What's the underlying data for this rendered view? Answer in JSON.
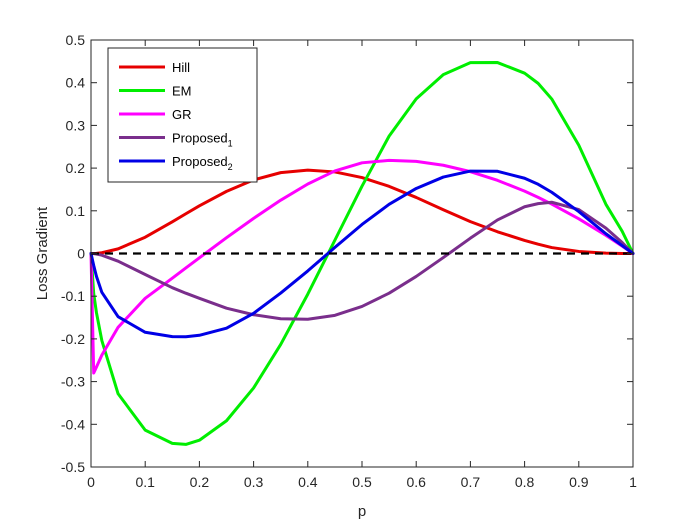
{
  "chart_data": {
    "type": "line",
    "xlabel": "p",
    "ylabel": "Loss Gradient",
    "xlim": [
      0,
      1
    ],
    "ylim": [
      -0.5,
      0.5
    ],
    "xticks": [
      "0",
      "0.1",
      "0.2",
      "0.3",
      "0.4",
      "0.5",
      "0.6",
      "0.7",
      "0.8",
      "0.9",
      "1"
    ],
    "yticks": [
      "-0.5",
      "-0.4",
      "-0.3",
      "-0.2",
      "-0.1",
      "0",
      "0.1",
      "0.2",
      "0.3",
      "0.4",
      "0.5"
    ],
    "grid": false,
    "box": true,
    "legend_position": "top-left",
    "x": [
      0,
      0.005,
      0.01,
      0.02,
      0.05,
      0.1,
      0.15,
      0.175,
      0.2,
      0.25,
      0.3,
      0.35,
      0.4,
      0.45,
      0.5,
      0.55,
      0.6,
      0.65,
      0.7,
      0.75,
      0.8,
      0.825,
      0.85,
      0.9,
      0.95,
      0.98,
      1
    ],
    "series": [
      {
        "name": "Hill",
        "color": "#e60000",
        "values": [
          0,
          0.0001,
          0.0004,
          0.0017,
          0.0108,
          0.0382,
          0.0742,
          0.0931,
          0.1116,
          0.1455,
          0.1723,
          0.1894,
          0.1953,
          0.191,
          0.1778,
          0.1573,
          0.1313,
          0.1025,
          0.0746,
          0.0509,
          0.0306,
          0.0217,
          0.0139,
          0.0048,
          0.0008,
          0.0001,
          0
        ]
      },
      {
        "name": "EM",
        "color": "#00ee00",
        "values": [
          0,
          -0.0936,
          -0.1382,
          -0.2039,
          -0.3285,
          -0.4136,
          -0.4446,
          -0.4471,
          -0.4373,
          -0.3917,
          -0.3149,
          -0.213,
          -0.0951,
          0.0313,
          0.1577,
          0.2749,
          0.3621,
          0.419,
          0.4469,
          0.4472,
          0.4223,
          0.3984,
          0.362,
          0.2535,
          0.1152,
          0.0521,
          0
        ]
      },
      {
        "name": "GR",
        "color": "#ff00ff",
        "values": [
          0,
          -0.28,
          -0.266,
          -0.2381,
          -0.1728,
          -0.105,
          -0.0578,
          -0.0339,
          -0.0101,
          0.037,
          0.0823,
          0.1249,
          0.1628,
          0.1933,
          0.2124,
          0.2181,
          0.2157,
          0.2067,
          0.1917,
          0.1713,
          0.146,
          0.1314,
          0.1158,
          0.0812,
          0.0424,
          0.0172,
          0
        ]
      },
      {
        "name": "Proposed_1",
        "color": "#7a2e8c",
        "values": [
          0,
          -0.0004,
          -0.0012,
          -0.004,
          -0.018,
          -0.0491,
          -0.0801,
          -0.093,
          -0.105,
          -0.128,
          -0.1434,
          -0.1529,
          -0.154,
          -0.1448,
          -0.124,
          -0.0929,
          -0.0537,
          -0.0095,
          0.0359,
          0.0786,
          0.1095,
          0.1168,
          0.12,
          0.1029,
          0.0595,
          0.0257,
          0
        ]
      },
      {
        "name": "Proposed_2",
        "color": "#0000e6",
        "values": [
          0,
          -0.028,
          -0.0533,
          -0.0909,
          -0.148,
          -0.1845,
          -0.1946,
          -0.195,
          -0.1915,
          -0.175,
          -0.1401,
          -0.0926,
          -0.0408,
          0.0143,
          0.068,
          0.1152,
          0.1523,
          0.179,
          0.193,
          0.1925,
          0.1762,
          0.1621,
          0.1434,
          0.0982,
          0.0463,
          0.0185,
          0
        ]
      },
      {
        "name": "",
        "color": "#000000",
        "dashed": true,
        "values": [
          0,
          0,
          0,
          0,
          0,
          0,
          0,
          0,
          0,
          0,
          0,
          0,
          0,
          0,
          0,
          0,
          0,
          0,
          0,
          0,
          0,
          0,
          0,
          0,
          0,
          0,
          0
        ]
      }
    ],
    "legend": [
      {
        "label": "Hill",
        "sub": ""
      },
      {
        "label": "EM",
        "sub": ""
      },
      {
        "label": "GR",
        "sub": ""
      },
      {
        "label": "Proposed",
        "sub": "1"
      },
      {
        "label": "Proposed",
        "sub": "2"
      }
    ]
  }
}
